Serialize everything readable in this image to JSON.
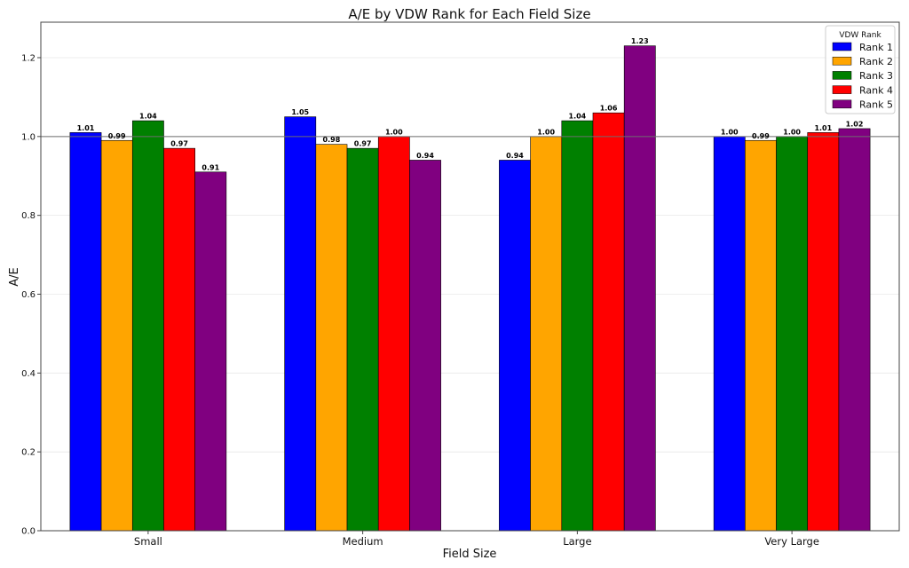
{
  "chart_data": {
    "type": "bar",
    "title": "A/E by VDW Rank for Each Field Size",
    "xlabel": "Field Size",
    "ylabel": "A/E",
    "categories": [
      "Small",
      "Medium",
      "Large",
      "Very Large"
    ],
    "ylim": [
      0,
      1.29
    ],
    "yticks": [
      0.0,
      0.2,
      0.4,
      0.6,
      0.8,
      1.0,
      1.2
    ],
    "ytick_labels": [
      "0.0",
      "0.2",
      "0.4",
      "0.6",
      "0.8",
      "1.0",
      "1.2"
    ],
    "reference_line": 1.0,
    "grid": "horizontal",
    "legend": {
      "title": "VDW Rank",
      "position": "top-right"
    },
    "series": [
      {
        "name": "Rank 1",
        "color": "#0000ff",
        "values": [
          1.01,
          1.05,
          0.94,
          1.0
        ],
        "labels": [
          "1.01",
          "1.05",
          "0.94",
          "1.00"
        ]
      },
      {
        "name": "Rank 2",
        "color": "#ffa500",
        "values": [
          0.99,
          0.98,
          1.0,
          0.99
        ],
        "labels": [
          "0.99",
          "0.98",
          "1.00",
          "0.99"
        ]
      },
      {
        "name": "Rank 3",
        "color": "#008000",
        "values": [
          1.04,
          0.97,
          1.04,
          1.0
        ],
        "labels": [
          "1.04",
          "0.97",
          "1.04",
          "1.00"
        ]
      },
      {
        "name": "Rank 4",
        "color": "#ff0000",
        "values": [
          0.97,
          1.0,
          1.06,
          1.01
        ],
        "labels": [
          "0.97",
          "1.00",
          "1.06",
          "1.01"
        ]
      },
      {
        "name": "Rank 5",
        "color": "#800080",
        "values": [
          0.91,
          0.94,
          1.23,
          1.02
        ],
        "labels": [
          "0.91",
          "0.94",
          "1.23",
          "1.02"
        ]
      }
    ]
  }
}
